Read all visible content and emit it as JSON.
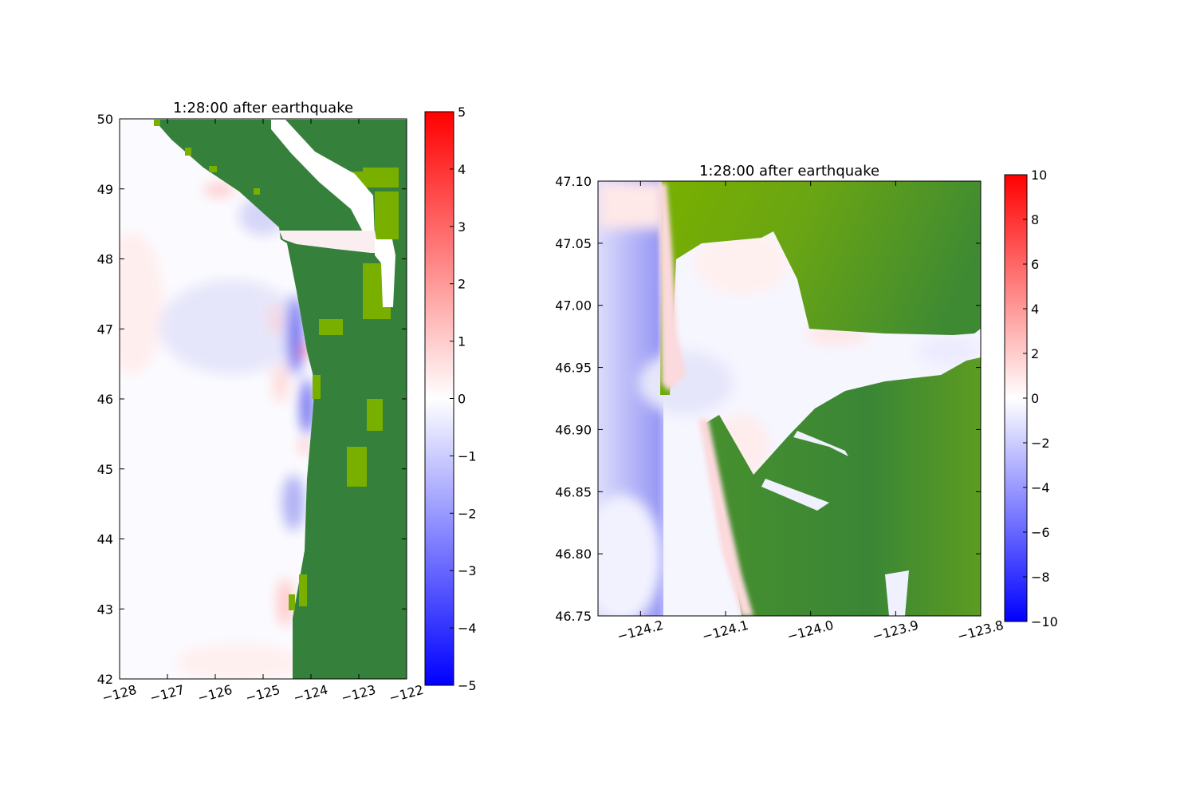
{
  "chart_data": [
    {
      "type": "heatmap",
      "title": "1:28:00 after earthquake",
      "xlim": [
        -128,
        -122
      ],
      "ylim": [
        42,
        50
      ],
      "xticks": [
        "−128",
        "−127",
        "−126",
        "−125",
        "−124",
        "−123",
        "−122"
      ],
      "yticks": [
        "42",
        "43",
        "44",
        "45",
        "46",
        "47",
        "48",
        "49",
        "50"
      ],
      "colormap": "bwr",
      "land_colors": [
        "#35803a",
        "#79b000"
      ],
      "colorbar": {
        "range": [
          -5,
          5
        ],
        "ticks": [
          "5",
          "4",
          "3",
          "2",
          "1",
          "0",
          "−1",
          "−2",
          "−3",
          "−4",
          "−5"
        ]
      }
    },
    {
      "type": "heatmap",
      "title": "1:28:00 after earthquake",
      "xlim": [
        -124.25,
        -123.8
      ],
      "ylim": [
        46.75,
        47.1
      ],
      "xticks": [
        "−124.2",
        "−124.1",
        "−124.0",
        "−123.9",
        "−123.8"
      ],
      "yticks": [
        "46.75",
        "46.80",
        "46.85",
        "46.90",
        "46.95",
        "47.00",
        "47.05",
        "47.10"
      ],
      "colormap": "bwr",
      "land_colors": [
        "#35803a",
        "#79b000"
      ],
      "colorbar": {
        "range": [
          -10,
          10
        ],
        "ticks": [
          "10",
          "8",
          "6",
          "4",
          "2",
          "0",
          "−2",
          "−4",
          "−6",
          "−8",
          "−10"
        ]
      }
    }
  ]
}
